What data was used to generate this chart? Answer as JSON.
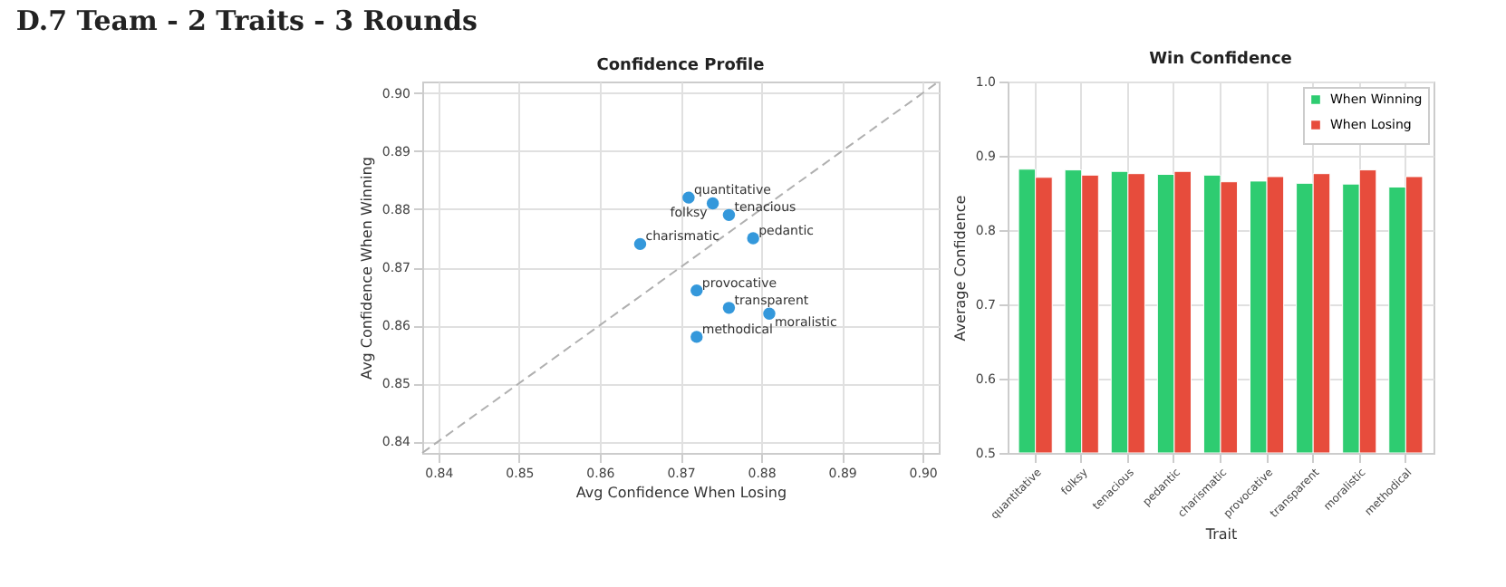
{
  "chart_data": [
    {
      "type": "scatter",
      "title": "Confidence Profile",
      "xlabel": "Avg Confidence When Losing",
      "ylabel": "Avg Confidence When Winning",
      "series": [
        {
          "color": "#3498db",
          "marker": "circle",
          "x": [
            0.871,
            0.874,
            0.876,
            0.879,
            0.865,
            0.872,
            0.876,
            0.881,
            0.872
          ],
          "values": [
            0.882,
            0.881,
            0.879,
            0.875,
            0.874,
            0.866,
            0.863,
            0.862,
            0.858
          ]
        },
        {
          "type": "line",
          "line_style": "dashed",
          "color": "#b0b0b0",
          "x": [
            0.838,
            0.902
          ],
          "values": [
            0.838,
            0.902
          ]
        }
      ],
      "annotations": [
        "D.7 Team - 2 Traits - 3 Rounds",
        {
          "text": "quantitative",
          "x": 0.871,
          "y": 0.882
        },
        {
          "text": "folksy",
          "x": 0.874,
          "y": 0.881
        },
        {
          "text": "tenacious",
          "x": 0.876,
          "y": 0.879
        },
        {
          "text": "pedantic",
          "x": 0.879,
          "y": 0.875
        },
        {
          "text": "charismatic",
          "x": 0.865,
          "y": 0.874
        },
        {
          "text": "provocative",
          "x": 0.872,
          "y": 0.866
        },
        {
          "text": "transparent",
          "x": 0.876,
          "y": 0.863
        },
        {
          "text": "moralistic",
          "x": 0.881,
          "y": 0.862
        },
        {
          "text": "methodical",
          "x": 0.872,
          "y": 0.858
        }
      ],
      "xlim": [
        0.838,
        0.902
      ],
      "ylim": [
        0.838,
        0.902
      ],
      "xticks": [
        0.84,
        0.85,
        0.86,
        0.87,
        0.88,
        0.89,
        {
          "value": 0.9,
          "label": "0.90"
        }
      ],
      "yticks": [
        0.84,
        0.85,
        0.86,
        0.87,
        0.88,
        0.89,
        {
          "value": 0.9,
          "label": "0.90"
        }
      ],
      "grid": true
    },
    {
      "type": "bar",
      "title": "Win Confidence",
      "xlabel": "Trait",
      "ylabel": "Average Confidence",
      "categories": [
        "quantitative",
        "folksy",
        "tenacious",
        "pedantic",
        "charismatic",
        "provocative",
        "transparent",
        "moralistic",
        "methodical"
      ],
      "series": [
        {
          "name": "When Winning",
          "color": "#2ecc71",
          "values": [
            0.882,
            0.881,
            0.879,
            0.875,
            0.874,
            0.866,
            0.863,
            0.862,
            0.858
          ]
        },
        {
          "name": "When Losing",
          "color": "#e74c3c",
          "values": [
            0.871,
            0.874,
            0.876,
            0.879,
            0.865,
            0.872,
            0.876,
            0.881,
            0.872
          ]
        }
      ],
      "ylim": [
        0.5,
        1.0
      ],
      "yticks": [
        0.5,
        0.6,
        0.7,
        0.8,
        0.9,
        {
          "value": 1.0,
          "label": "1.0"
        }
      ],
      "grid": true,
      "legend": "top right"
    }
  ]
}
